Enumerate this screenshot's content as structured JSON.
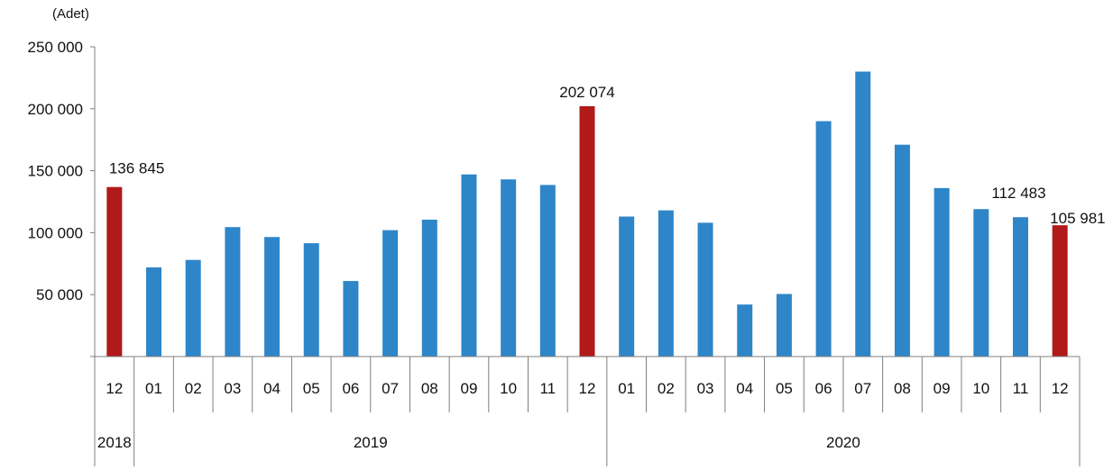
{
  "chart_data": {
    "type": "bar",
    "unit_label": "(Adet)",
    "ylim": [
      0,
      250000
    ],
    "y_ticks": [
      50000,
      100000,
      150000,
      200000,
      250000
    ],
    "y_tick_labels": [
      "50 000",
      "100 000",
      "150 000",
      "200 000",
      "250 000"
    ],
    "categories": [
      "12",
      "01",
      "02",
      "03",
      "04",
      "05",
      "06",
      "07",
      "08",
      "09",
      "10",
      "11",
      "12",
      "01",
      "02",
      "03",
      "04",
      "05",
      "06",
      "07",
      "08",
      "09",
      "10",
      "11",
      "12"
    ],
    "values": [
      136845,
      72000,
      78000,
      104500,
      96500,
      91500,
      61000,
      102000,
      110500,
      147000,
      143000,
      138500,
      202074,
      113000,
      118000,
      108000,
      42000,
      50500,
      190000,
      230000,
      171000,
      136000,
      119000,
      112483,
      105981
    ],
    "highlight": [
      true,
      false,
      false,
      false,
      false,
      false,
      false,
      false,
      false,
      false,
      false,
      false,
      true,
      false,
      false,
      false,
      false,
      false,
      false,
      false,
      false,
      false,
      false,
      false,
      true
    ],
    "data_labels": [
      {
        "index": 0,
        "text": "136 845"
      },
      {
        "index": 12,
        "text": "202 074"
      },
      {
        "index": 23,
        "text": "112 483"
      },
      {
        "index": 24,
        "text": "105 981"
      }
    ],
    "year_groups": [
      {
        "label": "2018",
        "start": 0,
        "end": 0
      },
      {
        "label": "2019",
        "start": 1,
        "end": 12
      },
      {
        "label": "2020",
        "start": 13,
        "end": 24
      }
    ],
    "colors": {
      "bar": "#2e86c9",
      "highlight": "#b11a1a",
      "axis": "#7f7f7f"
    },
    "grid": false
  }
}
